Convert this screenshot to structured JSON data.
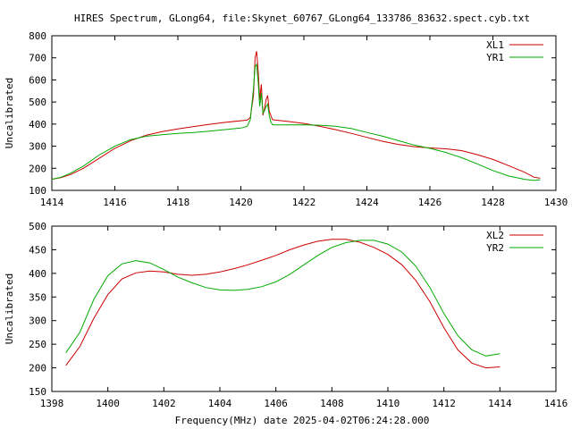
{
  "title": "HIRES Spectrum, GLong64, file:Skynet_60767_GLong64_133786_83632.spect.cyb.txt",
  "xlabel": "Frequency(MHz) date 2025-04-02T06:24:28.000",
  "chart_data": [
    {
      "type": "line",
      "ylabel": "Uncalibrated",
      "xlim": [
        1414,
        1430
      ],
      "ylim": [
        100,
        800
      ],
      "xticks": [
        "1414",
        "1416",
        "1418",
        "1420",
        "1422",
        "1424",
        "1426",
        "1428",
        "1430"
      ],
      "yticks": [
        "100",
        "200",
        "300",
        "400",
        "500",
        "600",
        "700",
        "800"
      ],
      "legend_position": "top-right",
      "series": [
        {
          "name": "XL1",
          "color": "#cc0000",
          "x": [
            1414,
            1414.3,
            1414.6,
            1415,
            1415.5,
            1416,
            1416.5,
            1417,
            1417.5,
            1418,
            1418.5,
            1419,
            1419.5,
            1420,
            1420.2,
            1420.3,
            1420.4,
            1420.45,
            1420.5,
            1420.55,
            1420.6,
            1420.65,
            1420.7,
            1420.75,
            1420.8,
            1420.85,
            1420.9,
            1420.95,
            1421,
            1421.1,
            1421.5,
            1422,
            1422.5,
            1423,
            1423.5,
            1424,
            1424.5,
            1425,
            1425.5,
            1426,
            1426.5,
            1427,
            1427.5,
            1428,
            1428.5,
            1429,
            1429.3,
            1429.5
          ],
          "y": [
            150,
            158,
            172,
            200,
            245,
            290,
            325,
            350,
            366,
            378,
            389,
            399,
            408,
            415,
            418,
            430,
            530,
            700,
            730,
            640,
            510,
            580,
            440,
            470,
            510,
            530,
            460,
            440,
            420,
            418,
            412,
            403,
            390,
            375,
            358,
            340,
            322,
            308,
            298,
            292,
            288,
            280,
            262,
            240,
            212,
            182,
            160,
            155
          ]
        },
        {
          "name": "YR1",
          "color": "#00aa00",
          "x": [
            1414,
            1414.3,
            1414.6,
            1415,
            1415.5,
            1416,
            1416.5,
            1417,
            1417.5,
            1418,
            1418.5,
            1419,
            1419.5,
            1420,
            1420.2,
            1420.3,
            1420.4,
            1420.45,
            1420.5,
            1420.55,
            1420.6,
            1420.65,
            1420.7,
            1420.75,
            1420.8,
            1420.85,
            1420.9,
            1420.95,
            1421,
            1421.1,
            1421.5,
            1422,
            1422.5,
            1423,
            1423.5,
            1424,
            1424.5,
            1425,
            1425.5,
            1426,
            1426.5,
            1427,
            1427.5,
            1428,
            1428.5,
            1429,
            1429.3,
            1429.5
          ],
          "y": [
            150,
            160,
            178,
            210,
            260,
            300,
            330,
            345,
            352,
            358,
            362,
            368,
            375,
            382,
            390,
            420,
            560,
            660,
            670,
            590,
            480,
            540,
            450,
            460,
            480,
            490,
            440,
            410,
            398,
            396,
            396,
            397,
            395,
            390,
            380,
            362,
            345,
            325,
            305,
            290,
            272,
            248,
            220,
            190,
            165,
            150,
            145,
            148
          ]
        }
      ]
    },
    {
      "type": "line",
      "ylabel": "Uncalibrated",
      "xlim": [
        1398,
        1416
      ],
      "ylim": [
        150,
        500
      ],
      "xticks": [
        "1398",
        "1400",
        "1402",
        "1404",
        "1406",
        "1408",
        "1410",
        "1412",
        "1414",
        "1416"
      ],
      "yticks": [
        "150",
        "200",
        "250",
        "300",
        "350",
        "400",
        "450",
        "500"
      ],
      "legend_position": "top-right",
      "series": [
        {
          "name": "XL2",
          "color": "#cc0000",
          "x": [
            1398.5,
            1399,
            1399.5,
            1400,
            1400.5,
            1401,
            1401.5,
            1402,
            1402.5,
            1403,
            1403.5,
            1404,
            1404.5,
            1405,
            1405.5,
            1406,
            1406.5,
            1407,
            1407.5,
            1408,
            1408.5,
            1409,
            1409.5,
            1410,
            1410.5,
            1411,
            1411.5,
            1412,
            1412.5,
            1413,
            1413.5,
            1414
          ],
          "y": [
            205,
            245,
            305,
            355,
            388,
            401,
            405,
            403,
            398,
            396,
            398,
            403,
            410,
            418,
            428,
            438,
            450,
            460,
            468,
            472,
            472,
            466,
            455,
            440,
            418,
            385,
            340,
            285,
            238,
            210,
            200,
            202
          ]
        },
        {
          "name": "YR2",
          "color": "#00aa00",
          "x": [
            1398.5,
            1399,
            1399.5,
            1400,
            1400.5,
            1401,
            1401.5,
            1402,
            1402.5,
            1403,
            1403.5,
            1404,
            1404.5,
            1405,
            1405.5,
            1406,
            1406.5,
            1407,
            1407.5,
            1408,
            1408.5,
            1409,
            1409.5,
            1410,
            1410.5,
            1411,
            1411.5,
            1412,
            1412.5,
            1413,
            1413.5,
            1414
          ],
          "y": [
            232,
            275,
            345,
            395,
            420,
            427,
            422,
            408,
            392,
            380,
            370,
            365,
            364,
            366,
            372,
            382,
            398,
            418,
            438,
            455,
            465,
            470,
            470,
            462,
            445,
            415,
            370,
            315,
            268,
            238,
            225,
            230
          ]
        }
      ]
    }
  ]
}
